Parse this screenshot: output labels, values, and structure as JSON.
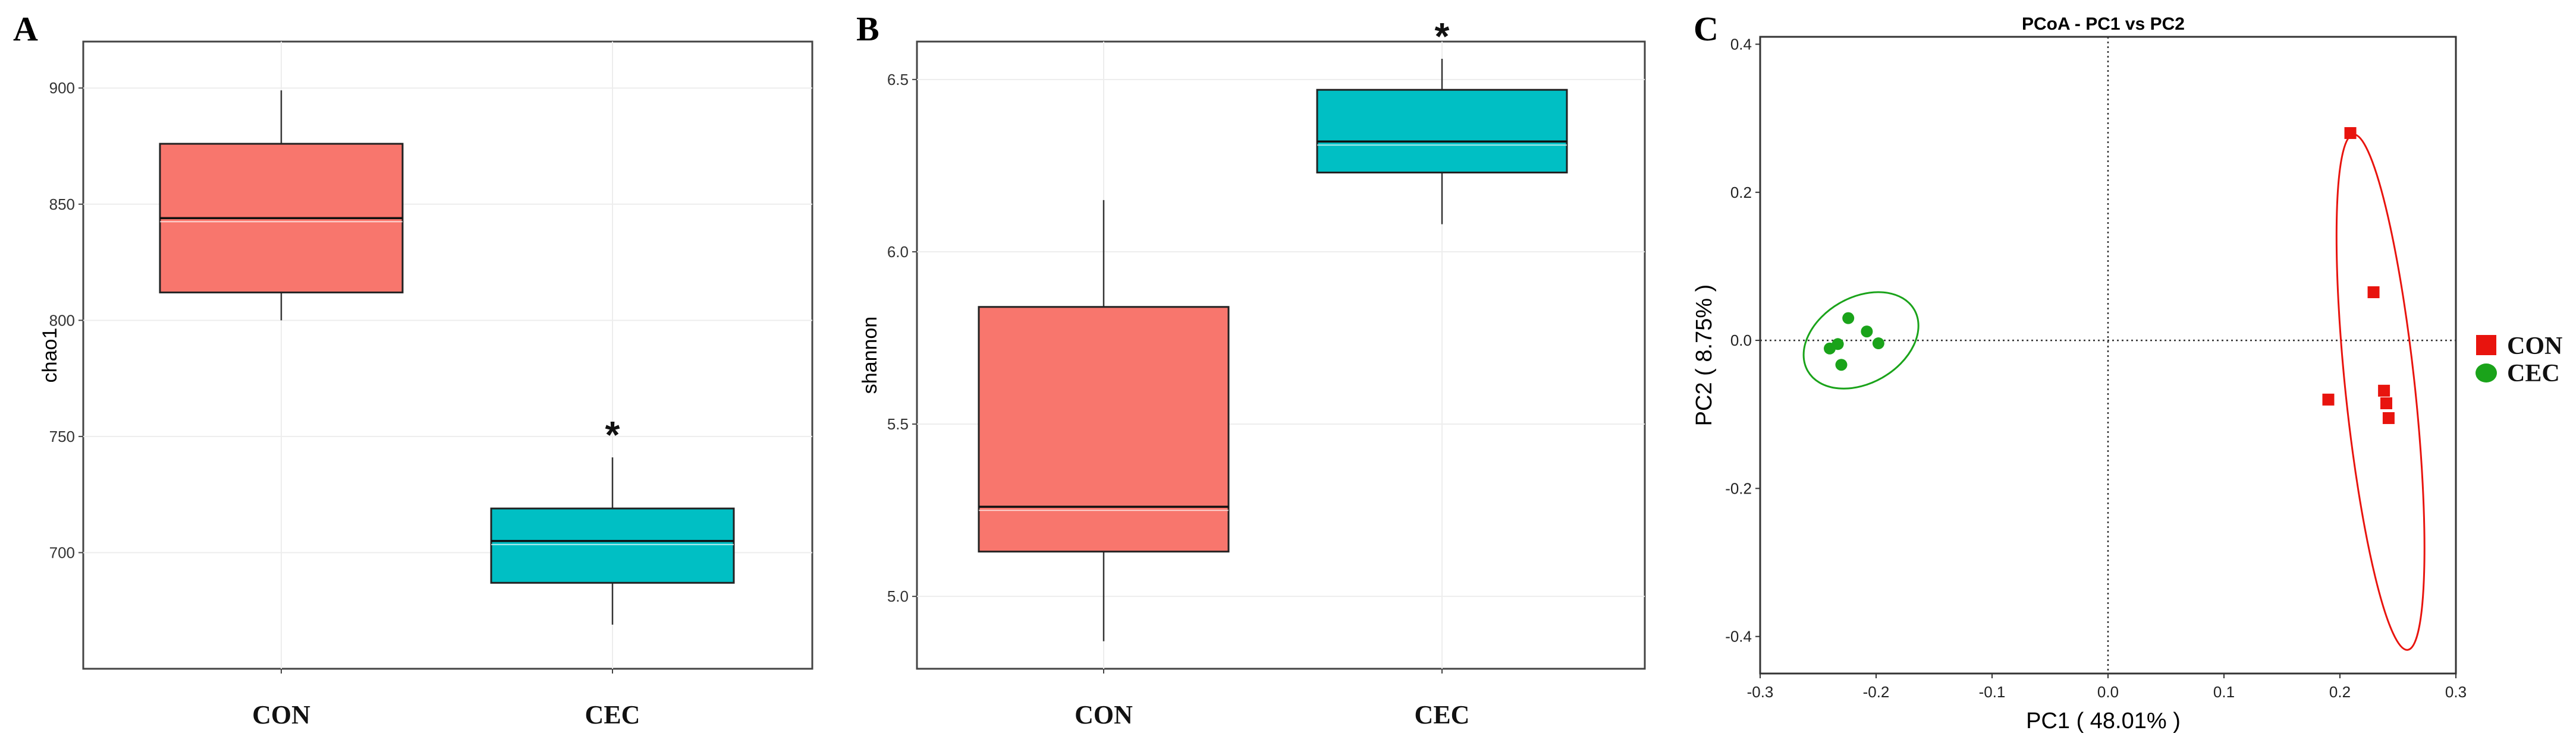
{
  "panels": [
    {
      "letter": "A",
      "type": "box",
      "ylabel": "chao1",
      "ylim": [
        650,
        920
      ],
      "yticks": [
        700,
        750,
        800,
        850,
        900
      ],
      "categories": [
        "CON",
        "CEC"
      ],
      "boxes": [
        {
          "group": "CON",
          "min": 800,
          "q1": 812,
          "median": 844,
          "q3": 876,
          "max": 899,
          "color": "#f8766d",
          "mark": ""
        },
        {
          "group": "CEC",
          "min": 669,
          "q1": 687,
          "median": 705,
          "q3": 719,
          "max": 741,
          "color": "#00bfc4",
          "mark": "*"
        }
      ]
    },
    {
      "letter": "B",
      "type": "box",
      "ylabel": "shannon",
      "ylim": [
        4.79,
        6.61
      ],
      "yticks": [
        5.0,
        5.5,
        6.0,
        6.5
      ],
      "categories": [
        "CON",
        "CEC"
      ],
      "boxes": [
        {
          "group": "CON",
          "min": 4.87,
          "q1": 5.13,
          "median": 5.26,
          "q3": 5.84,
          "max": 6.15,
          "color": "#f8766d",
          "mark": ""
        },
        {
          "group": "CEC",
          "min": 6.08,
          "q1": 6.23,
          "median": 6.32,
          "q3": 6.47,
          "max": 6.56,
          "color": "#00bfc4",
          "mark": "*"
        }
      ]
    }
  ],
  "chart_data": [
    {
      "type": "box",
      "ylabel": "chao1",
      "categories": [
        "CON",
        "CEC"
      ],
      "values": [
        {
          "min": 800,
          "q1": 812,
          "median": 844,
          "q3": 876,
          "max": 899
        },
        {
          "min": 669,
          "q1": 687,
          "median": 705,
          "q3": 719,
          "max": 741
        }
      ],
      "ylim": [
        650,
        920
      ],
      "annotation": "*"
    },
    {
      "type": "box",
      "ylabel": "shannon",
      "categories": [
        "CON",
        "CEC"
      ],
      "values": [
        {
          "min": 4.87,
          "q1": 5.13,
          "median": 5.26,
          "q3": 5.84,
          "max": 6.15
        },
        {
          "min": 6.08,
          "q1": 6.23,
          "median": 6.32,
          "q3": 6.47,
          "max": 6.56
        }
      ],
      "ylim": [
        4.79,
        6.61
      ],
      "annotation": "*"
    },
    {
      "type": "scatter",
      "title": "PCoA - PC1 vs PC2",
      "xlabel": "PC1 ( 48.01% )",
      "ylabel": "PC2 ( 8.75% )",
      "xlim": [
        -0.3,
        0.3
      ],
      "ylim": [
        -0.45,
        0.41
      ],
      "xticks": [
        -0.3,
        -0.2,
        -0.1,
        0.0,
        0.1,
        0.2,
        0.3
      ],
      "xtick_labels": [
        "-0.3",
        "-0.2",
        "-0.1",
        "0.0",
        "0.1",
        "0.2",
        "0.3"
      ],
      "yticks": [
        0.4,
        0.2,
        0.0,
        -0.2,
        -0.4
      ],
      "ytick_labels": [
        "0.4",
        "0.2",
        "0.0",
        "-0.2",
        "-0.4"
      ],
      "legend_position": "right",
      "series": [
        {
          "name": "CON",
          "color": "#e8140e",
          "marker": "square",
          "points": [
            [
              0.209,
              0.28
            ],
            [
              0.229,
              0.065
            ],
            [
              0.19,
              -0.08
            ],
            [
              0.238,
              -0.068
            ],
            [
              0.24,
              -0.085
            ],
            [
              0.242,
              -0.105
            ]
          ],
          "ellipse": {
            "cx": 0.235,
            "cy": -0.07,
            "rx": 0.03,
            "ry": 0.35,
            "angle": -6
          }
        },
        {
          "name": "CEC",
          "color": "#1aa31a",
          "marker": "circle",
          "points": [
            [
              -0.224,
              0.03
            ],
            [
              -0.208,
              0.012
            ],
            [
              -0.198,
              -0.004
            ],
            [
              -0.233,
              -0.005
            ],
            [
              -0.24,
              -0.011
            ],
            [
              -0.23,
              -0.033
            ]
          ],
          "ellipse": {
            "cx": -0.213,
            "cy": 0.0,
            "rx": 0.053,
            "ry": 0.058,
            "angle": -30
          }
        }
      ]
    }
  ]
}
